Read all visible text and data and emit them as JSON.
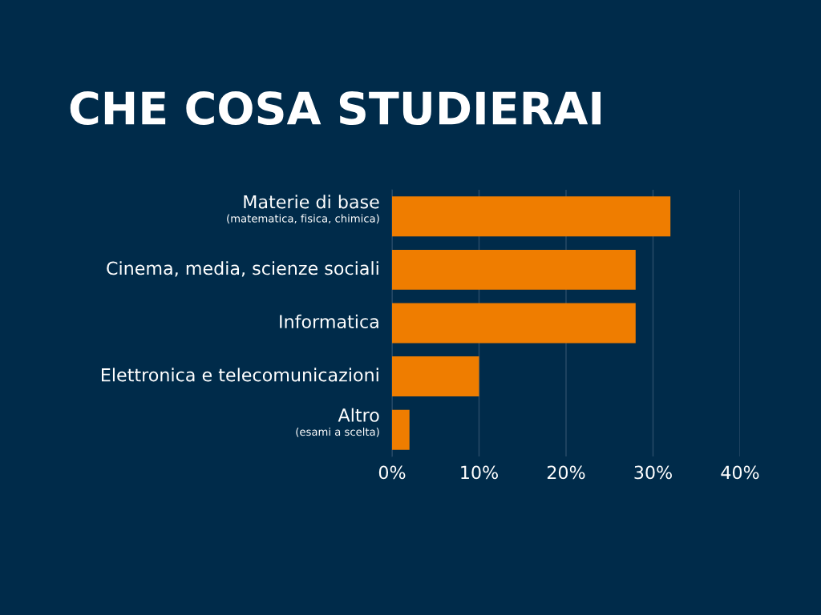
{
  "chart_data": {
    "type": "bar",
    "orientation": "horizontal",
    "title": "CHE COSA STUDIERAI",
    "categories": [
      "Materie di base\n(matematica, fisica, chimica)",
      "Cinema, media, scienze sociali",
      "Informatica",
      "Elettronica e telecomunicazioni",
      "Altro\n(esami a scelta)"
    ],
    "values": [
      32,
      28,
      28,
      10,
      2
    ],
    "color": "#ef7d00",
    "xlim": [
      0,
      40
    ],
    "xticks": [
      {
        "value": 0,
        "label": "0%"
      },
      {
        "value": 10,
        "label": "10%"
      },
      {
        "value": 20,
        "label": "20%"
      },
      {
        "value": 30,
        "label": "30%"
      },
      {
        "value": 40,
        "label": "40%"
      }
    ],
    "grid": "x"
  }
}
